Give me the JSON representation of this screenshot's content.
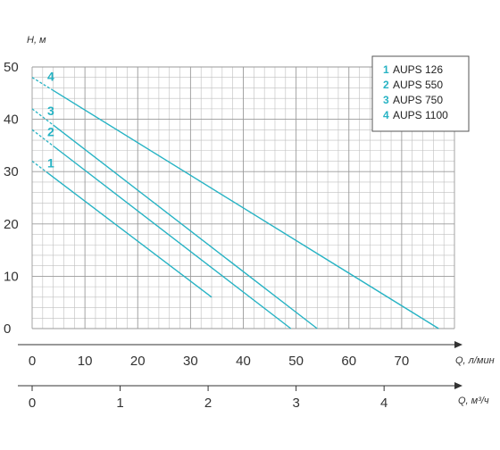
{
  "chart_data": {
    "type": "line",
    "ylabel": "H, м",
    "xlabel": "Q, л/мин",
    "x2label": "Q, м³/ч",
    "xlim": [
      0,
      80
    ],
    "ylim": [
      0,
      50
    ],
    "x2lim": [
      0,
      4.8
    ],
    "xticks": [
      0,
      10,
      20,
      30,
      40,
      50,
      60,
      70
    ],
    "yticks": [
      0,
      10,
      20,
      30,
      40,
      50
    ],
    "x2ticks": [
      0,
      1,
      2,
      3,
      4
    ],
    "grid": true,
    "legend_position": "top-right",
    "colors": {
      "curve": "#27b3c4",
      "grid": "#bfbfbf",
      "axis": "#333333"
    },
    "series": [
      {
        "name": "AUPS 126",
        "label": "1",
        "x": [
          0,
          34
        ],
        "y": [
          32,
          6
        ],
        "dashed_until_x": 3
      },
      {
        "name": "AUPS 550",
        "label": "2",
        "x": [
          0,
          49
        ],
        "y": [
          38,
          0
        ],
        "dashed_until_x": 4
      },
      {
        "name": "AUPS 750",
        "label": "3",
        "x": [
          0,
          54
        ],
        "y": [
          42,
          0
        ],
        "dashed_until_x": 4
      },
      {
        "name": "AUPS 1100",
        "label": "4",
        "x": [
          0,
          77
        ],
        "y": [
          48,
          0
        ],
        "dashed_until_x": 4
      }
    ],
    "legend": [
      {
        "num": "1",
        "text": "AUPS 126"
      },
      {
        "num": "2",
        "text": "AUPS 550"
      },
      {
        "num": "3",
        "text": "AUPS 750"
      },
      {
        "num": "4",
        "text": "AUPS 1100"
      }
    ]
  }
}
